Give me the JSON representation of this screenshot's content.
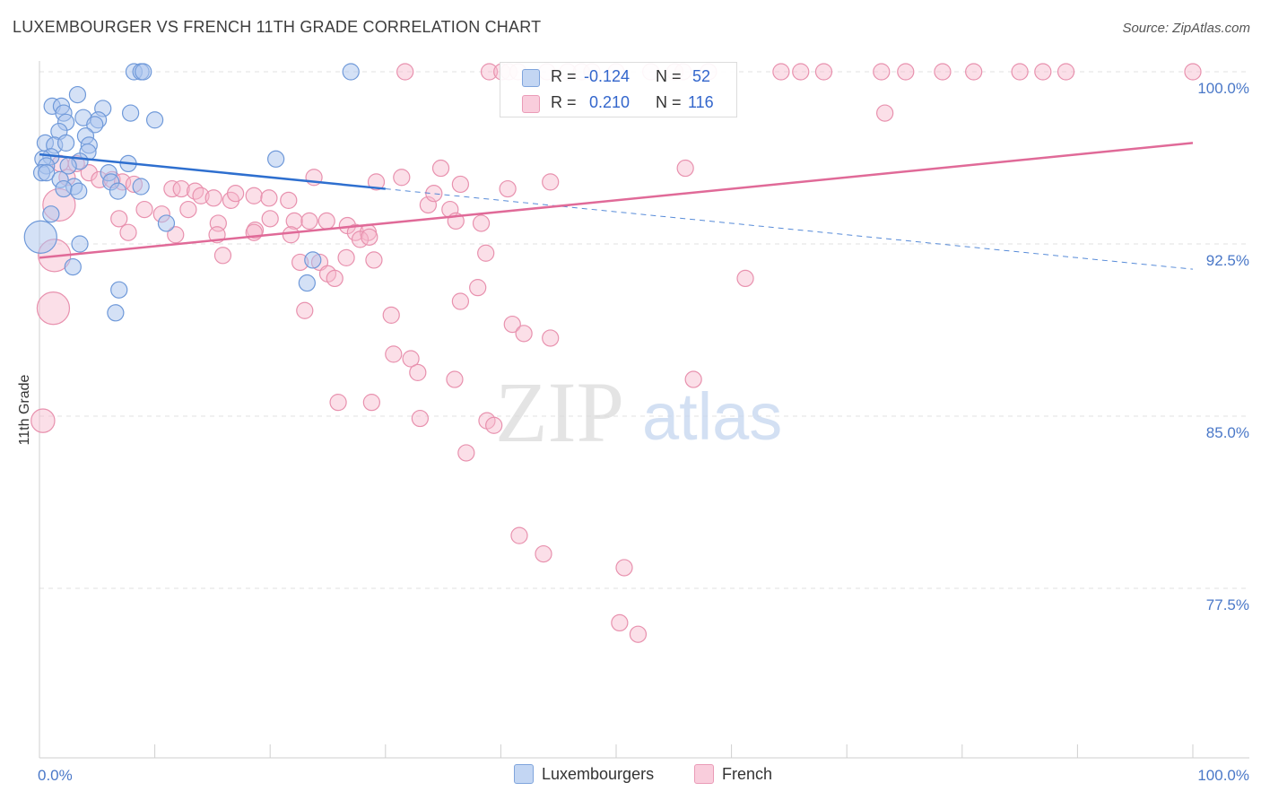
{
  "title": "LUXEMBOURGER VS FRENCH 11TH GRADE CORRELATION CHART",
  "source": "Source: ZipAtlas.com",
  "watermark": {
    "zip": "ZIP",
    "atlas": "atlas"
  },
  "colors": {
    "blue_fill": "#a9c4ee",
    "blue_stroke": "#6f99d9",
    "blue_line": "#2e6fcf",
    "pink_fill": "#f6b9cd",
    "pink_stroke": "#e891ae",
    "pink_line": "#e06a98",
    "tick_text": "#4a78c8",
    "grid": "#e2e2e2"
  },
  "legend": {
    "rows": [
      {
        "r_label": "R =",
        "r_value": "-0.124",
        "n_label": "N =",
        "n_value": "52"
      },
      {
        "r_label": "R =",
        "r_value": "0.210",
        "n_label": "N =",
        "n_value": "116"
      }
    ]
  },
  "bottom_legend": [
    "Luxembourgers",
    "French"
  ],
  "chart_data": {
    "type": "scatter",
    "title": "LUXEMBOURGER VS FRENCH 11TH GRADE CORRELATION CHART",
    "xlabel": "",
    "ylabel": "11th Grade",
    "xlim": [
      0,
      100
    ],
    "ylim": [
      71,
      101.5
    ],
    "x_tick_labels": [
      "0.0%",
      "100.0%"
    ],
    "y_ticks": [
      77.5,
      85.0,
      92.5,
      100.0
    ],
    "y_tick_labels": [
      "77.5%",
      "85.0%",
      "92.5%",
      "100.0%"
    ],
    "grid": "horizontal dashed",
    "legend_position": "top-center",
    "series": [
      {
        "name": "Luxembourgers",
        "r": -0.124,
        "n": 52,
        "trend": {
          "x": [
            0,
            30
          ],
          "y": [
            96.4,
            94.9
          ],
          "dashed_to": [
            100,
            91.4
          ]
        },
        "points": [
          [
            8.2,
            100,
            11
          ],
          [
            8.8,
            100,
            11
          ],
          [
            9.0,
            100,
            11
          ],
          [
            27.0,
            100,
            11
          ],
          [
            3.3,
            99.0,
            11
          ],
          [
            1.1,
            98.5,
            11
          ],
          [
            1.9,
            98.5,
            11
          ],
          [
            5.5,
            98.4,
            11
          ],
          [
            2.1,
            98.2,
            11
          ],
          [
            7.9,
            98.2,
            11
          ],
          [
            3.8,
            98.0,
            11
          ],
          [
            5.1,
            97.9,
            11
          ],
          [
            10.0,
            97.9,
            11
          ],
          [
            2.3,
            97.8,
            11
          ],
          [
            4.8,
            97.7,
            11
          ],
          [
            1.7,
            97.4,
            11
          ],
          [
            4.0,
            97.2,
            11
          ],
          [
            0.5,
            96.9,
            11
          ],
          [
            1.3,
            96.8,
            11
          ],
          [
            2.3,
            96.9,
            11
          ],
          [
            4.3,
            96.8,
            11
          ],
          [
            4.2,
            96.5,
            11
          ],
          [
            1.0,
            96.3,
            11
          ],
          [
            0.3,
            96.2,
            11
          ],
          [
            3.5,
            96.1,
            11
          ],
          [
            20.5,
            96.2,
            11
          ],
          [
            0.6,
            95.9,
            11
          ],
          [
            7.7,
            96.0,
            11
          ],
          [
            2.5,
            95.9,
            11
          ],
          [
            0.2,
            95.6,
            11
          ],
          [
            0.6,
            95.6,
            11
          ],
          [
            6.0,
            95.6,
            11
          ],
          [
            1.8,
            95.3,
            11
          ],
          [
            6.2,
            95.2,
            11
          ],
          [
            3.0,
            95.0,
            11
          ],
          [
            2.1,
            94.9,
            11
          ],
          [
            3.4,
            94.8,
            11
          ],
          [
            6.8,
            94.8,
            11
          ],
          [
            8.8,
            95.0,
            11
          ],
          [
            1.0,
            93.8,
            11
          ],
          [
            11.0,
            93.4,
            11
          ],
          [
            0.1,
            92.8,
            22
          ],
          [
            3.5,
            92.5,
            11
          ],
          [
            23.7,
            91.8,
            11
          ],
          [
            2.9,
            91.5,
            11
          ],
          [
            23.2,
            90.8,
            11
          ],
          [
            6.9,
            90.5,
            11
          ],
          [
            6.6,
            89.5,
            11
          ]
        ]
      },
      {
        "name": "French",
        "r": 0.21,
        "n": 116,
        "trend": {
          "x": [
            0,
            100
          ],
          "y": [
            91.9,
            96.9
          ]
        },
        "points": [
          [
            31.7,
            100,
            11
          ],
          [
            39.0,
            100,
            11
          ],
          [
            40.1,
            100,
            11
          ],
          [
            40.7,
            100,
            11
          ],
          [
            41.5,
            100,
            11
          ],
          [
            44.0,
            100,
            11
          ],
          [
            45.8,
            100,
            11
          ],
          [
            47.0,
            100,
            11
          ],
          [
            47.9,
            100,
            11
          ],
          [
            50.0,
            100,
            11
          ],
          [
            53.0,
            100,
            11
          ],
          [
            55.1,
            100,
            11
          ],
          [
            55.8,
            100,
            11
          ],
          [
            58.0,
            100,
            11
          ],
          [
            64.3,
            100,
            11
          ],
          [
            66.0,
            100,
            11
          ],
          [
            68.0,
            100,
            11
          ],
          [
            73.0,
            100,
            11
          ],
          [
            75.1,
            100,
            11
          ],
          [
            78.3,
            100,
            11
          ],
          [
            81.0,
            100,
            11
          ],
          [
            85.0,
            100,
            11
          ],
          [
            87.0,
            100,
            11
          ],
          [
            89.0,
            100,
            11
          ],
          [
            100.0,
            100,
            11
          ],
          [
            73.3,
            98.2,
            11
          ],
          [
            56.0,
            95.8,
            11
          ],
          [
            1.8,
            96.0,
            11
          ],
          [
            3.2,
            96.0,
            11
          ],
          [
            4.3,
            95.6,
            11
          ],
          [
            2.4,
            95.4,
            11
          ],
          [
            5.2,
            95.3,
            11
          ],
          [
            6.3,
            95.3,
            11
          ],
          [
            7.2,
            95.2,
            11
          ],
          [
            8.2,
            95.1,
            11
          ],
          [
            11.5,
            94.9,
            11
          ],
          [
            12.3,
            94.9,
            11
          ],
          [
            13.5,
            94.8,
            11
          ],
          [
            14.0,
            94.6,
            11
          ],
          [
            15.1,
            94.5,
            11
          ],
          [
            16.6,
            94.4,
            11
          ],
          [
            17.0,
            94.7,
            11
          ],
          [
            18.6,
            94.6,
            11
          ],
          [
            19.9,
            94.5,
            11
          ],
          [
            21.6,
            94.4,
            11
          ],
          [
            23.8,
            95.4,
            11
          ],
          [
            29.2,
            95.2,
            11
          ],
          [
            31.4,
            95.4,
            11
          ],
          [
            33.7,
            94.2,
            11
          ],
          [
            34.2,
            94.7,
            11
          ],
          [
            36.5,
            95.1,
            11
          ],
          [
            40.6,
            94.9,
            11
          ],
          [
            44.3,
            95.2,
            11
          ],
          [
            34.8,
            95.8,
            11
          ],
          [
            1.7,
            94.2,
            22
          ],
          [
            6.9,
            93.6,
            11
          ],
          [
            9.1,
            94.0,
            11
          ],
          [
            10.6,
            93.8,
            11
          ],
          [
            12.9,
            94.0,
            11
          ],
          [
            15.5,
            93.4,
            11
          ],
          [
            18.7,
            93.1,
            11
          ],
          [
            20.0,
            93.6,
            11
          ],
          [
            22.1,
            93.5,
            11
          ],
          [
            24.9,
            93.5,
            11
          ],
          [
            26.7,
            93.3,
            11
          ],
          [
            27.4,
            93.0,
            11
          ],
          [
            28.5,
            93.0,
            11
          ],
          [
            35.6,
            94.0,
            11
          ],
          [
            36.1,
            93.5,
            11
          ],
          [
            38.3,
            93.4,
            11
          ],
          [
            7.7,
            93.0,
            11
          ],
          [
            11.8,
            92.9,
            11
          ],
          [
            15.4,
            92.9,
            11
          ],
          [
            18.6,
            93.0,
            11
          ],
          [
            21.8,
            92.9,
            11
          ],
          [
            23.4,
            93.5,
            11
          ],
          [
            27.8,
            92.7,
            11
          ],
          [
            28.6,
            92.8,
            11
          ],
          [
            1.3,
            92.0,
            22
          ],
          [
            15.9,
            92.0,
            11
          ],
          [
            22.6,
            91.7,
            11
          ],
          [
            24.3,
            91.7,
            11
          ],
          [
            26.6,
            91.9,
            11
          ],
          [
            29.0,
            91.8,
            11
          ],
          [
            38.7,
            92.1,
            11
          ],
          [
            25.0,
            91.2,
            11
          ],
          [
            25.6,
            91.0,
            11
          ],
          [
            38.0,
            90.6,
            11
          ],
          [
            61.2,
            91.0,
            11
          ],
          [
            1.2,
            89.7,
            22
          ],
          [
            23.0,
            89.6,
            11
          ],
          [
            30.5,
            89.4,
            11
          ],
          [
            36.5,
            90.0,
            11
          ],
          [
            41.0,
            89.0,
            11
          ],
          [
            42.0,
            88.6,
            11
          ],
          [
            44.3,
            88.4,
            11
          ],
          [
            30.7,
            87.7,
            11
          ],
          [
            32.2,
            87.5,
            11
          ],
          [
            32.8,
            86.9,
            11
          ],
          [
            36.0,
            86.6,
            11
          ],
          [
            56.7,
            86.6,
            11
          ],
          [
            25.9,
            85.6,
            11
          ],
          [
            28.8,
            85.6,
            11
          ],
          [
            33.0,
            84.9,
            11
          ],
          [
            38.8,
            84.8,
            11
          ],
          [
            39.4,
            84.6,
            11
          ],
          [
            0.3,
            84.8,
            16
          ],
          [
            37.0,
            83.4,
            11
          ],
          [
            41.6,
            79.8,
            11
          ],
          [
            43.7,
            79.0,
            11
          ],
          [
            50.7,
            78.4,
            11
          ],
          [
            50.3,
            76.0,
            11
          ],
          [
            51.9,
            75.5,
            11
          ]
        ]
      }
    ]
  }
}
